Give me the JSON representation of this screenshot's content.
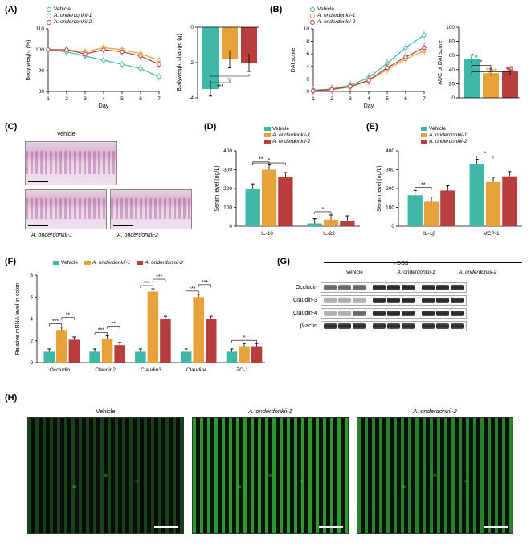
{
  "colors": {
    "vehicle": "#3fb8a8",
    "ond1": "#e8a23c",
    "ond2": "#b83e3e",
    "axis": "#000000",
    "grid": "#e0e0e0",
    "bg": "#ffffff"
  },
  "series_names": {
    "vehicle": "Vehicle",
    "ond1": "A. onderdonkii-1",
    "ond2": "A. onderdonkii-2"
  },
  "A": {
    "line": {
      "type": "line",
      "xlabel": "Day",
      "ylabel": "Body weight (%)",
      "xlim": [
        1,
        7
      ],
      "xtick_step": 1,
      "ylim": [
        80,
        110
      ],
      "ytick_step": 10,
      "days": [
        1,
        2,
        3,
        4,
        5,
        6,
        7
      ],
      "vehicle": [
        100,
        99,
        97,
        95,
        93,
        91,
        87
      ],
      "ond1": [
        100,
        100,
        99,
        101,
        100,
        98,
        95
      ],
      "ond2": [
        100,
        100,
        98,
        100,
        99,
        97,
        93
      ],
      "err": 1.8,
      "label_fontsize": 7
    },
    "bar": {
      "type": "bar",
      "ylabel": "Bodyweight change (g)",
      "ylim": [
        -4,
        0
      ],
      "ytick_step": 2,
      "values": {
        "vehicle": -3.5,
        "ond1": -1.8,
        "ond2": -2.0
      },
      "err": {
        "vehicle": 0.4,
        "ond1": 0.5,
        "ond2": 0.5
      },
      "bar_width": 0.6,
      "sig": [
        {
          "a": "vehicle",
          "b": "ond1",
          "label": "***"
        },
        {
          "a": "vehicle",
          "b": "ond2",
          "label": "**"
        }
      ]
    }
  },
  "B": {
    "line": {
      "type": "line",
      "xlabel": "Day",
      "ylabel": "DAI score",
      "xlim": [
        1,
        7
      ],
      "xtick_step": 1,
      "ylim": [
        0,
        10
      ],
      "ytick_step": 2,
      "days": [
        1,
        2,
        3,
        4,
        5,
        6,
        7
      ],
      "vehicle": [
        0.2,
        0.4,
        1.0,
        2.2,
        4.5,
        7.0,
        9.0
      ],
      "ond1": [
        0.1,
        0.3,
        0.7,
        1.7,
        3.5,
        5.2,
        6.5
      ],
      "ond2": [
        0.1,
        0.3,
        0.8,
        1.8,
        3.8,
        5.5,
        7.0
      ],
      "err": 0.7
    },
    "bar": {
      "type": "scatter-bar",
      "ylabel": "AUC of DAI score",
      "ylim": [
        0,
        100
      ],
      "ytick_step": 20,
      "values": {
        "vehicle": 55,
        "ond1": 35,
        "ond2": 38
      },
      "err": {
        "vehicle": 6,
        "ond1": 6,
        "ond2": 6
      },
      "n_points": 8,
      "sig": [
        {
          "a": "vehicle",
          "b": "ond1",
          "label": "*"
        },
        {
          "a": "vehicle",
          "b": "ond2",
          "label": "*"
        }
      ]
    }
  },
  "C": {
    "title_vehicle": "Vehicle",
    "title_ond1": "A. onderdonkii-1",
    "title_ond2": "A. onderdonkii-2"
  },
  "D": {
    "type": "grouped-bar",
    "ylabel": "Serum level (ng/L)",
    "ylim": [
      0,
      400
    ],
    "ytick_step": 100,
    "categories": [
      "IL-10",
      "IL-22"
    ],
    "data": {
      "IL-10": {
        "vehicle": 200,
        "ond1": 300,
        "ond2": 260
      },
      "IL-22": {
        "vehicle": 15,
        "ond1": 35,
        "ond2": 30
      }
    },
    "err": 25,
    "sig": [
      {
        "cat": "IL-10",
        "a": "vehicle",
        "b": "ond1",
        "label": "**"
      },
      {
        "cat": "IL-10",
        "a": "vehicle",
        "b": "ond2",
        "label": "*"
      },
      {
        "cat": "IL-22",
        "a": "vehicle",
        "b": "ond1",
        "label": "*"
      }
    ]
  },
  "E": {
    "type": "grouped-bar",
    "ylabel": "Serum level (ng/L)",
    "ylim": [
      0,
      400
    ],
    "ytick_step": 100,
    "categories": [
      "IL-1β",
      "MCP-1"
    ],
    "data": {
      "IL-1β": {
        "vehicle": 165,
        "ond1": 130,
        "ond2": 190
      },
      "MCP-1": {
        "vehicle": 330,
        "ond1": 235,
        "ond2": 265
      }
    },
    "err": 25,
    "sig": [
      {
        "cat": "IL-1β",
        "a": "vehicle",
        "b": "ond1",
        "label": "**"
      },
      {
        "cat": "MCP-1",
        "a": "vehicle",
        "b": "ond1",
        "label": "*"
      }
    ]
  },
  "F": {
    "type": "grouped-bar",
    "ylabel": "Relative mRNA level in colon",
    "ylim": [
      0,
      8
    ],
    "ytick_step": 2,
    "categories": [
      "Occludin",
      "Claudin2",
      "Claudin3",
      "Claudin4",
      "ZO-1"
    ],
    "data": {
      "Occludin": {
        "vehicle": 1.0,
        "ond1": 3.0,
        "ond2": 2.1
      },
      "Claudin2": {
        "vehicle": 1.0,
        "ond1": 2.2,
        "ond2": 1.6
      },
      "Claudin3": {
        "vehicle": 1.0,
        "ond1": 6.5,
        "ond2": 4.0
      },
      "Claudin4": {
        "vehicle": 1.0,
        "ond1": 6.0,
        "ond2": 4.0
      },
      "ZO-1": {
        "vehicle": 1.0,
        "ond1": 1.5,
        "ond2": 1.5
      }
    },
    "err": 0.25,
    "sig": [
      {
        "cat": "Occludin",
        "a": "vehicle",
        "b": "ond1",
        "label": "***"
      },
      {
        "cat": "Occludin",
        "a": "ond1",
        "b": "ond2",
        "label": "**"
      },
      {
        "cat": "Claudin2",
        "a": "vehicle",
        "b": "ond1",
        "label": "***"
      },
      {
        "cat": "Claudin2",
        "a": "ond1",
        "b": "ond2",
        "label": "**"
      },
      {
        "cat": "Claudin3",
        "a": "vehicle",
        "b": "ond1",
        "label": "***"
      },
      {
        "cat": "Claudin3",
        "a": "ond1",
        "b": "ond2",
        "label": "***"
      },
      {
        "cat": "Claudin4",
        "a": "vehicle",
        "b": "ond1",
        "label": "***"
      },
      {
        "cat": "Claudin4",
        "a": "ond1",
        "b": "ond2",
        "label": "***"
      },
      {
        "cat": "ZO-1",
        "a": "vehicle",
        "b": "ond2",
        "label": "*"
      }
    ]
  },
  "G": {
    "header": "+DSS",
    "groups": [
      "Vehicle",
      "A. onderdonkii-1",
      "A. onderdonkii-2"
    ],
    "rows": [
      "Occludin",
      "Claudin-3",
      "Claudin-4",
      "β-actin"
    ],
    "intensity": {
      "Occludin": [
        "med",
        "med",
        "med",
        "strong",
        "strong",
        "strong",
        "strong",
        "strong",
        "strong"
      ],
      "Claudin-3": [
        "faint",
        "faint",
        "faint",
        "strong",
        "strong",
        "strong",
        "strong",
        "strong",
        "strong"
      ],
      "Claudin-4": [
        "faint",
        "faint",
        "med",
        "strong",
        "strong",
        "strong",
        "strong",
        "strong",
        "strong"
      ],
      "β-actin": [
        "strong",
        "strong",
        "strong",
        "strong",
        "strong",
        "strong",
        "strong",
        "strong",
        "strong"
      ]
    }
  },
  "H": {
    "titles": [
      "Vehicle",
      "A. onderdonkii-1",
      "A. onderdonkii-2"
    ]
  }
}
